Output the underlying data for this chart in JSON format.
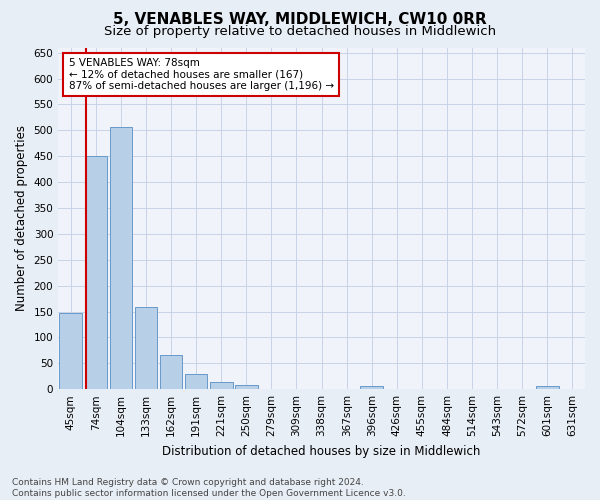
{
  "title": "5, VENABLES WAY, MIDDLEWICH, CW10 0RR",
  "subtitle": "Size of property relative to detached houses in Middlewich",
  "xlabel": "Distribution of detached houses by size in Middlewich",
  "ylabel": "Number of detached properties",
  "categories": [
    "45sqm",
    "74sqm",
    "104sqm",
    "133sqm",
    "162sqm",
    "191sqm",
    "221sqm",
    "250sqm",
    "279sqm",
    "309sqm",
    "338sqm",
    "367sqm",
    "396sqm",
    "426sqm",
    "455sqm",
    "484sqm",
    "514sqm",
    "543sqm",
    "572sqm",
    "601sqm",
    "631sqm"
  ],
  "values": [
    148,
    450,
    507,
    158,
    66,
    30,
    13,
    8,
    0,
    0,
    0,
    0,
    6,
    0,
    0,
    0,
    0,
    0,
    0,
    6,
    0
  ],
  "bar_color": "#b8cfe8",
  "bar_edge_color": "#6699cc",
  "vline_x_pos": 0.595,
  "vline_color": "#cc0000",
  "annotation_text": "5 VENABLES WAY: 78sqm\n← 12% of detached houses are smaller (167)\n87% of semi-detached houses are larger (1,196) →",
  "annotation_box_color": "#ffffff",
  "annotation_box_edge": "#cc0000",
  "footer_text": "Contains HM Land Registry data © Crown copyright and database right 2024.\nContains public sector information licensed under the Open Government Licence v3.0.",
  "bg_color": "#e8eef5",
  "plot_bg_color": "#f0f4fa",
  "grid_color": "#c8d4e8",
  "ylim": [
    0,
    660
  ],
  "yticks": [
    0,
    50,
    100,
    150,
    200,
    250,
    300,
    350,
    400,
    450,
    500,
    550,
    600,
    650
  ],
  "title_fontsize": 11,
  "subtitle_fontsize": 9.5,
  "ylabel_fontsize": 8.5,
  "xlabel_fontsize": 8.5,
  "tick_fontsize": 7.5,
  "annotation_fontsize": 7.5,
  "footer_fontsize": 6.5
}
